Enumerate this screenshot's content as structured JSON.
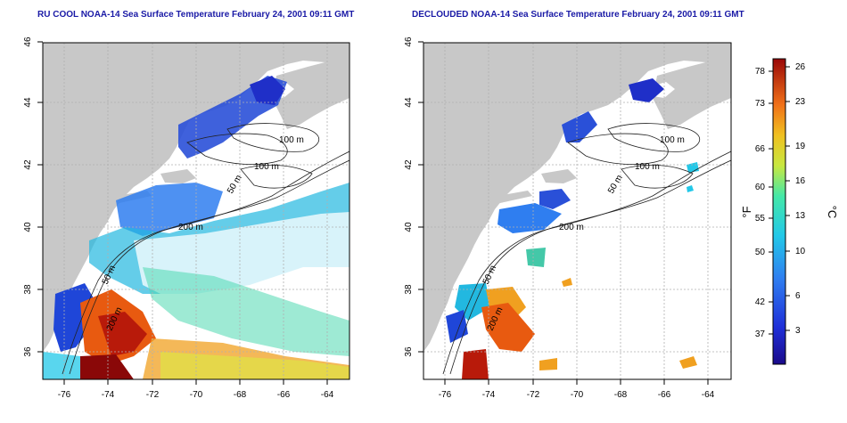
{
  "panels": [
    {
      "title": "RU COOL NOAA-14 Sea Surface Temperature February 24, 2001 09:11 GMT",
      "x_ticks": [
        "-76",
        "-74",
        "-72",
        "-70",
        "-68",
        "-66",
        "-64"
      ],
      "y_ticks": [
        "46",
        "44",
        "42",
        "40",
        "38",
        "36"
      ],
      "contour_labels": [
        "100 m",
        "100 m",
        "50 m",
        "200 m",
        "50 m",
        "200 m"
      ]
    },
    {
      "title": "DECLOUDED NOAA-14 Sea Surface Temperature February 24, 2001 09:11 GMT",
      "x_ticks": [
        "-76",
        "-74",
        "-72",
        "-70",
        "-68",
        "-66",
        "-64"
      ],
      "y_ticks": [
        "46",
        "44",
        "42",
        "40",
        "38",
        "36"
      ],
      "contour_labels": [
        "100 m",
        "100 m",
        "50 m",
        "200 m",
        "50 m",
        "200 m"
      ]
    }
  ],
  "colorbar": {
    "fahrenheit_label": "°F",
    "celsius_label": "°C",
    "fahrenheit_ticks": [
      "78",
      "73",
      "66",
      "60",
      "55",
      "50",
      "42",
      "37"
    ],
    "celsius_ticks": [
      "26",
      "23",
      "19",
      "16",
      "13",
      "10",
      "6",
      "3"
    ]
  },
  "colors": {
    "land": "#c8c8c8",
    "ocean": "#ffffff",
    "title": "#1a1aa6",
    "grid": "#b0b0b0"
  }
}
